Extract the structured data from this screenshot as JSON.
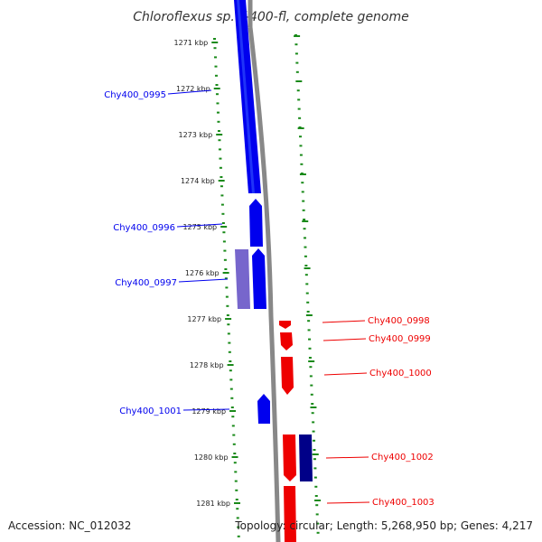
{
  "title": "Chloroflexus sp. Y-400-fl, complete genome",
  "footer": {
    "accession": "Accession: NC_012032",
    "summary": "Topology: circular; Length: 5,268,950 bp; Genes: 4,217"
  },
  "colors": {
    "reverse_strand": "#0000ee",
    "reverse_strand_pale": "#7766cc",
    "forward_strand": "#ee0000",
    "forward_strand_dark": "#000088",
    "track_dots": "#1a8a1a",
    "backbone": "#888888"
  },
  "ticks": [
    "1271 kbp",
    "1272 kbp",
    "1273 kbp",
    "1274 kbp",
    "1275 kbp",
    "1276 kbp",
    "1277 kbp",
    "1278 kbp",
    "1279 kbp",
    "1280 kbp",
    "1281 kbp"
  ],
  "genes": [
    {
      "label": "Chy400_0995",
      "strand": "reverse"
    },
    {
      "label": "Chy400_0996",
      "strand": "reverse"
    },
    {
      "label": "Chy400_0997",
      "strand": "reverse"
    },
    {
      "label": "Chy400_0998",
      "strand": "forward"
    },
    {
      "label": "Chy400_0999",
      "strand": "forward"
    },
    {
      "label": "Chy400_1000",
      "strand": "forward"
    },
    {
      "label": "Chy400_1001",
      "strand": "reverse"
    },
    {
      "label": "Chy400_1002",
      "strand": "forward"
    },
    {
      "label": "Chy400_1003",
      "strand": "forward"
    }
  ]
}
